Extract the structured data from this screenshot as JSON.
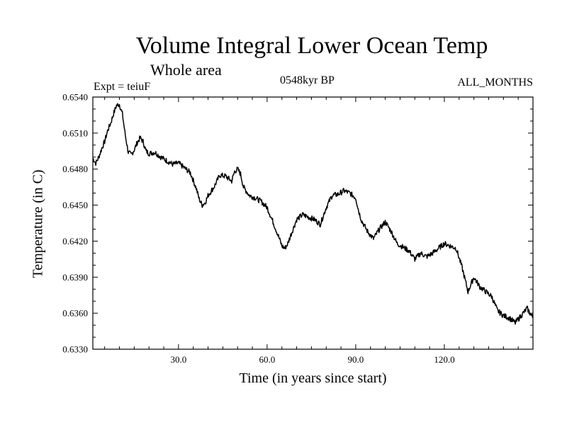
{
  "chart_data": {
    "type": "line",
    "title": "Volume Integral Lower Ocean Temp",
    "subtitle": "Whole area",
    "expt_label": "Expt = teiuF",
    "period_label": "0548kyr BP",
    "months_label": "ALL_MONTHS",
    "xlabel": "Time (in years since start)",
    "ylabel": "Temperature (in C)",
    "xlim": [
      1,
      150
    ],
    "ylim": [
      0.633,
      0.654
    ],
    "xticks": [
      30,
      60,
      90,
      120
    ],
    "xtick_labels": [
      "30.0",
      "60.0",
      "90.0",
      "120.0"
    ],
    "yticks": [
      0.633,
      0.636,
      0.639,
      0.642,
      0.645,
      0.648,
      0.651,
      0.654
    ],
    "ytick_labels": [
      "0.6330",
      "0.6360",
      "0.6390",
      "0.6420",
      "0.6450",
      "0.6480",
      "0.6510",
      "0.6540"
    ],
    "grid": false,
    "series": [
      {
        "name": "Volume integral lower ocean temperature",
        "x": [
          1,
          2,
          3,
          4,
          5,
          6,
          7,
          8,
          9,
          10,
          11,
          12,
          13,
          14,
          15,
          16,
          17,
          18,
          19,
          20,
          22,
          24,
          26,
          28,
          30,
          32,
          34,
          36,
          37,
          38,
          39,
          40,
          42,
          44,
          46,
          48,
          49,
          50,
          51,
          52,
          54,
          56,
          58,
          60,
          62,
          64,
          65,
          66,
          67,
          68,
          70,
          72,
          74,
          76,
          78,
          80,
          82,
          84,
          86,
          88,
          90,
          91,
          92,
          94,
          96,
          98,
          100,
          102,
          104,
          106,
          108,
          110,
          112,
          114,
          116,
          118,
          120,
          122,
          124,
          126,
          128,
          130,
          132,
          134,
          136,
          138,
          140,
          142,
          144,
          146,
          148,
          150
        ],
        "y": [
          0.6489,
          0.6485,
          0.649,
          0.6497,
          0.6503,
          0.6512,
          0.6518,
          0.6526,
          0.6533,
          0.6534,
          0.6526,
          0.6508,
          0.6494,
          0.6492,
          0.6496,
          0.6502,
          0.6506,
          0.6503,
          0.6495,
          0.6493,
          0.6494,
          0.649,
          0.6487,
          0.6484,
          0.6485,
          0.6481,
          0.6477,
          0.6464,
          0.6455,
          0.645,
          0.6452,
          0.6458,
          0.6465,
          0.6475,
          0.6474,
          0.647,
          0.6478,
          0.648,
          0.6476,
          0.6465,
          0.6458,
          0.6456,
          0.6453,
          0.6448,
          0.6436,
          0.6423,
          0.6416,
          0.6414,
          0.6418,
          0.6425,
          0.6438,
          0.6442,
          0.644,
          0.6438,
          0.6434,
          0.6448,
          0.6458,
          0.6459,
          0.6462,
          0.646,
          0.6456,
          0.6445,
          0.6437,
          0.6428,
          0.6422,
          0.643,
          0.6436,
          0.6428,
          0.6418,
          0.6415,
          0.6412,
          0.6405,
          0.641,
          0.6407,
          0.641,
          0.6414,
          0.6418,
          0.6416,
          0.6414,
          0.6398,
          0.6378,
          0.639,
          0.6382,
          0.6378,
          0.6374,
          0.6362,
          0.6358,
          0.6356,
          0.6352,
          0.6358,
          0.6364,
          0.6356
        ]
      }
    ]
  }
}
